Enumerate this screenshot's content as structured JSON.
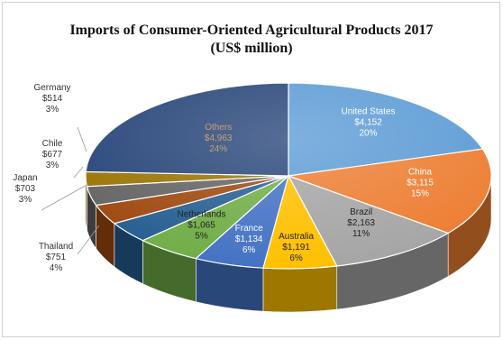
{
  "chart_data": {
    "type": "pie",
    "title": "Imports of Consumer-Oriented Agricultural Products 2017",
    "subtitle": "(US$ million)",
    "slices": [
      {
        "name": "United States",
        "value_label": "$4,152",
        "percent_label": "20%",
        "value": 4152,
        "percent": 20,
        "color": "#5b9bd5",
        "label_color": "#ffffff"
      },
      {
        "name": "China",
        "value_label": "$3,115",
        "percent_label": "15%",
        "value": 3115,
        "percent": 15,
        "color": "#ed7d31",
        "label_color": "#ffffff"
      },
      {
        "name": "Brazil",
        "value_label": "$2,163",
        "percent_label": "11%",
        "value": 2163,
        "percent": 11,
        "color": "#a5a5a5",
        "label_color": "#222222"
      },
      {
        "name": "Australia",
        "value_label": "$1,191",
        "percent_label": "6%",
        "value": 1191,
        "percent": 6,
        "color": "#ffc000",
        "label_color": "#222222"
      },
      {
        "name": "France",
        "value_label": "$1,134",
        "percent_label": "6%",
        "value": 1134,
        "percent": 6,
        "color": "#4472c4",
        "label_color": "#ffffff"
      },
      {
        "name": "Netherlands",
        "value_label": "$1,065",
        "percent_label": "5%",
        "value": 1065,
        "percent": 5,
        "color": "#70ad47",
        "label_color": "#222222"
      },
      {
        "name": "Thailand",
        "value_label": "$751",
        "percent_label": "4%",
        "value": 751,
        "percent": 4,
        "color": "#255e91",
        "label_color": "#222222"
      },
      {
        "name": "Japan",
        "value_label": "$703",
        "percent_label": "3%",
        "value": 703,
        "percent": 3,
        "color": "#9e480e",
        "label_color": "#222222"
      },
      {
        "name": "Chile",
        "value_label": "$677",
        "percent_label": "3%",
        "value": 677,
        "percent": 3,
        "color": "#636363",
        "label_color": "#222222"
      },
      {
        "name": "Germany",
        "value_label": "$514",
        "percent_label": "3%",
        "value": 514,
        "percent": 3,
        "color": "#997300",
        "label_color": "#222222"
      },
      {
        "name": "Others",
        "value_label": "$4,963",
        "percent_label": "24%",
        "value": 4963,
        "percent": 24,
        "color": "#264478",
        "label_color": "#c9a070"
      }
    ],
    "style": "3d-pie"
  }
}
